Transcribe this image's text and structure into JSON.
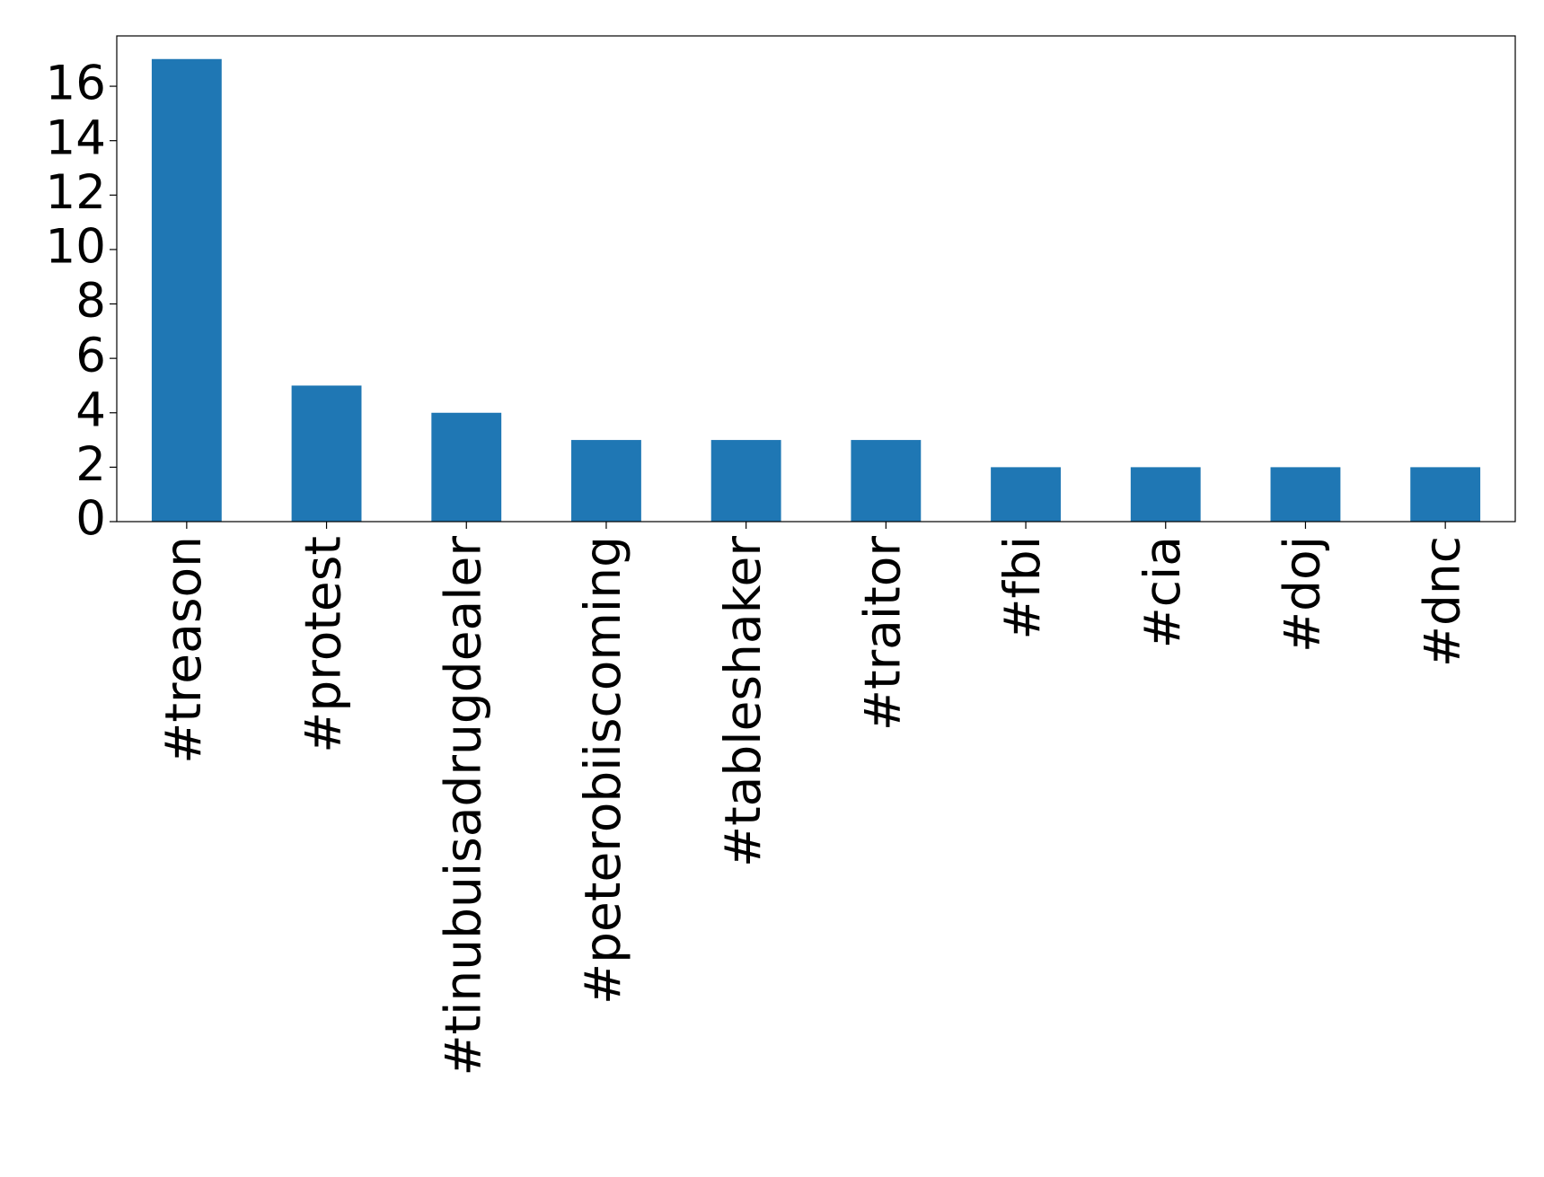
{
  "chart_data": {
    "type": "bar",
    "categories": [
      "#treason",
      "#protest",
      "#tinubuisadrugdealer",
      "#peterobiiscoming",
      "#tableshaker",
      "#traitor",
      "#fbi",
      "#cia",
      "#doj",
      "#dnc"
    ],
    "values": [
      17,
      5,
      4,
      3,
      3,
      3,
      2,
      2,
      2,
      2
    ],
    "color": "#1f77b4",
    "ylim": [
      0,
      17.85
    ],
    "yticks": [
      0,
      2,
      4,
      6,
      8,
      10,
      12,
      14,
      16
    ],
    "grid": false
  }
}
